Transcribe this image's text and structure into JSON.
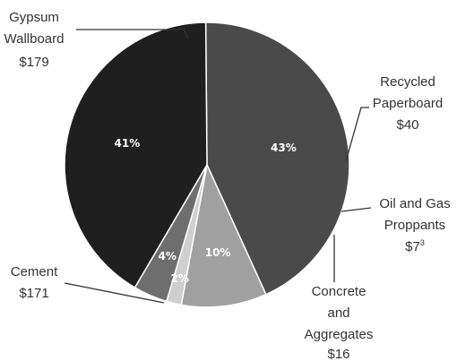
{
  "chart_data": {
    "type": "pie",
    "title": "",
    "colors": {
      "gypsum": "#4a4a4a",
      "recycled": "#a0a0a0",
      "oil": "#cfcfcf",
      "concrete": "#6e6e6e",
      "cement": "#1f1f1f"
    },
    "slices": [
      {
        "id": "gypsum",
        "label_lines": [
          "Gypsum",
          "Wallboard",
          "$179"
        ],
        "value": 179,
        "percent_label": "43%"
      },
      {
        "id": "recycled",
        "label_lines": [
          "Recycled",
          "Paperboard",
          "$40"
        ],
        "value": 40,
        "percent_label": "10%"
      },
      {
        "id": "oil",
        "label_lines": [
          "Oil and Gas",
          "Proppants",
          "$7"
        ],
        "label_sup": "3",
        "value": 7,
        "percent_label": "2%"
      },
      {
        "id": "concrete",
        "label_lines": [
          "Concrete",
          "and",
          "Aggregates",
          "$16"
        ],
        "value": 16,
        "percent_label": "4%"
      },
      {
        "id": "cement",
        "label_lines": [
          "Cement",
          "$171"
        ],
        "value": 171,
        "percent_label": "41%"
      }
    ]
  }
}
